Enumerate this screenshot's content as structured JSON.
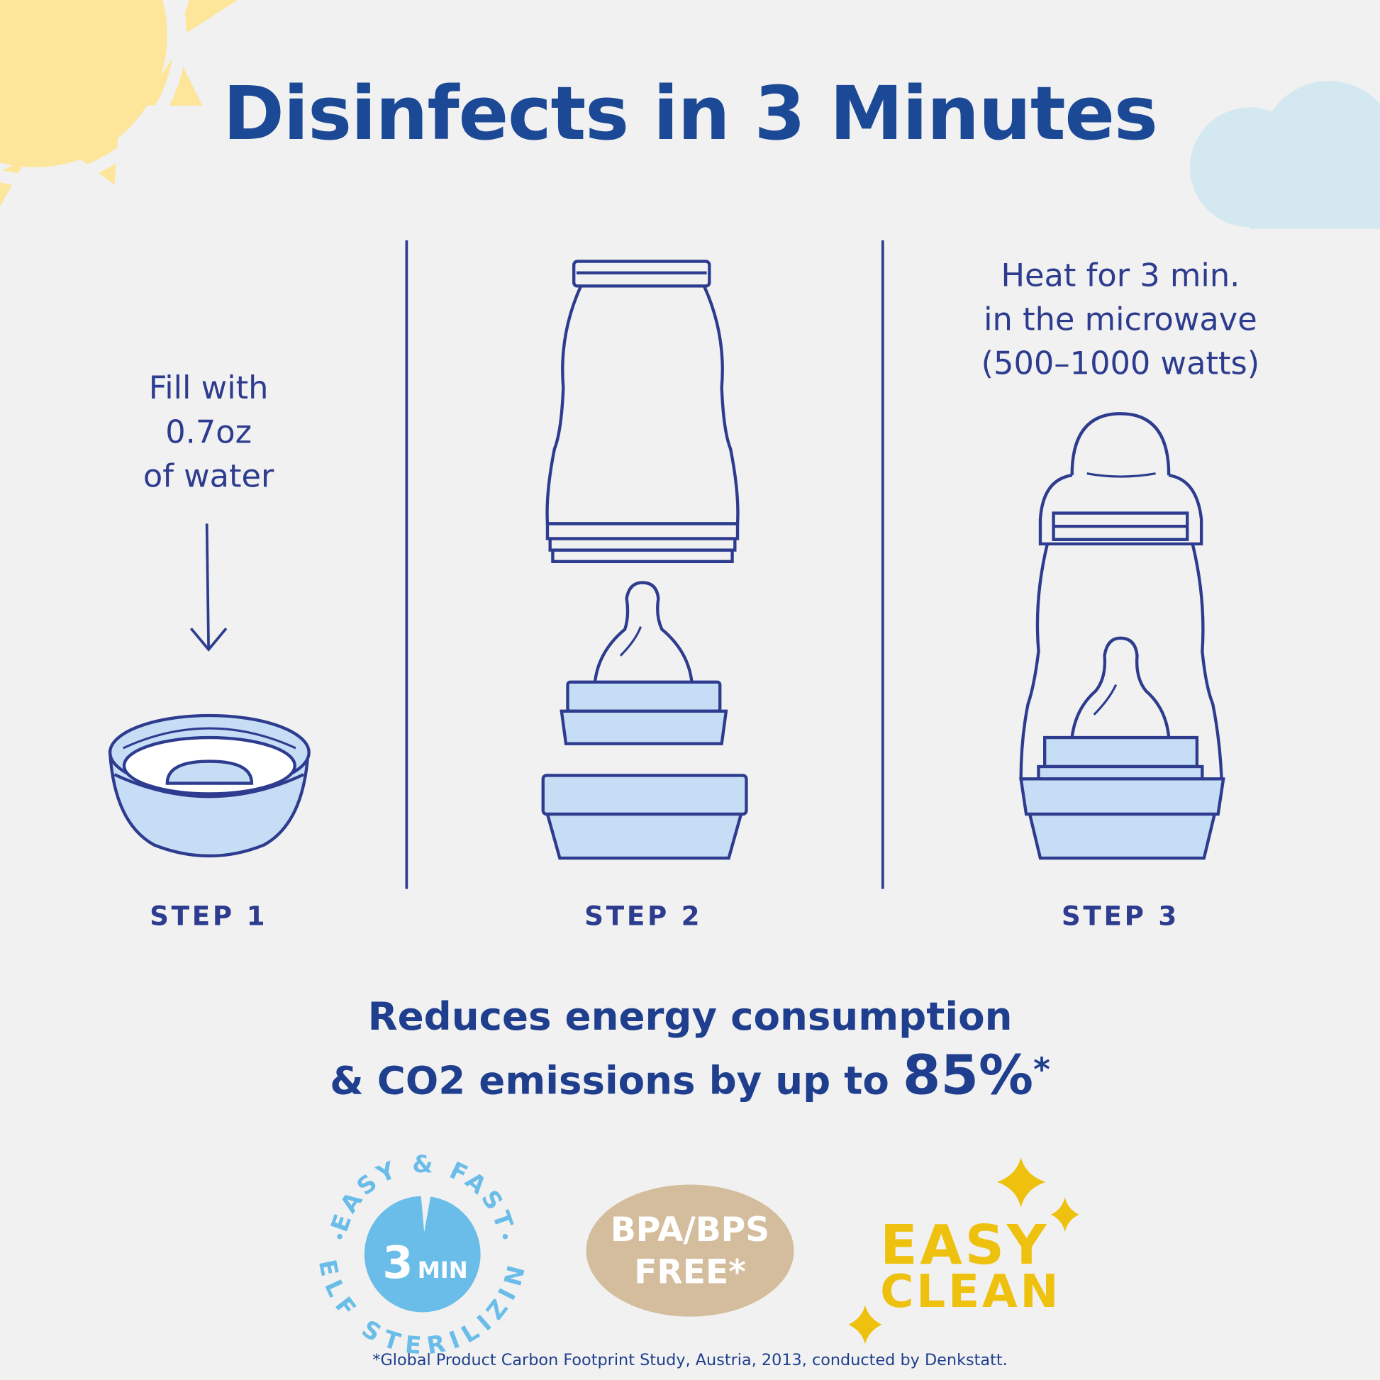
{
  "title": "Disinfects in 3 Minutes",
  "steps": [
    {
      "label": "STEP 1",
      "text": [
        "Fill with",
        "0.7oz",
        "of water"
      ]
    },
    {
      "label": "STEP 2"
    },
    {
      "label": "STEP 3",
      "text": [
        "Heat for 3 min.",
        "in the microwave",
        "(500–1000 watts)"
      ]
    }
  ],
  "energy": {
    "line1": "Reduces energy consumption",
    "line2": "& CO2 emissions by up to",
    "value": "85%",
    "mark": "*"
  },
  "badges": {
    "sterilizing": {
      "top": "EASY & FAST",
      "bottom": "SELF STERILIZING",
      "num": "3",
      "unit": "MIN"
    },
    "bpa": {
      "line1": "BPA/BPS",
      "line2": "FREE*"
    },
    "clean": {
      "line1": "EASY",
      "line2": "CLEAN"
    }
  },
  "footnote": "*Global Product Carbon Footprint Study, Austria, 2013, conducted by Denkstatt.",
  "colors": {
    "title": "#1c4996",
    "line": "#2d3c8e",
    "fill": "#c5def5",
    "sun": "#fde59a",
    "cloud": "#d3e8f0",
    "badge_blue": "#6bbde9",
    "badge_tan": "#d4bd9c",
    "yellow": "#efc10f"
  }
}
